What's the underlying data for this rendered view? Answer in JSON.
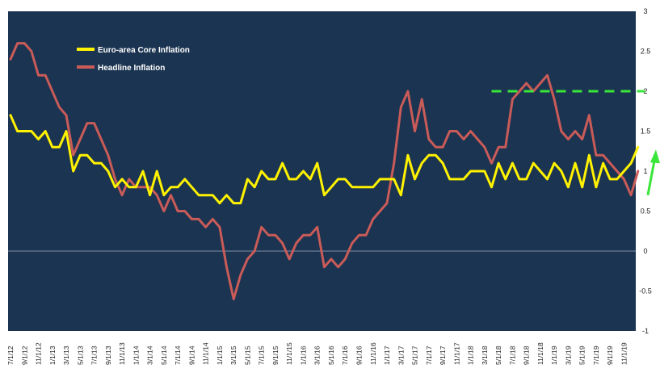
{
  "chart_data": {
    "type": "line",
    "title": "",
    "xlabel": "",
    "ylabel": "",
    "ylim": [
      -1,
      3
    ],
    "yticks": [
      "3",
      "2.5",
      "2",
      "1.5",
      "1",
      "0.5",
      "0",
      "-0.5",
      "-1"
    ],
    "grid": false,
    "legend_position": "top-left",
    "colors": {
      "plot_background": "#1b3451",
      "core": "#fff200",
      "headline": "#c95b58",
      "target_line": "#39e639",
      "arrow": "#39e639",
      "zero_line": "#7f8fa4"
    },
    "x_tick_labels": [
      "7/1/12",
      "9/1/12",
      "11/1/12",
      "1/1/13",
      "3/1/13",
      "5/1/13",
      "7/1/13",
      "9/1/13",
      "11/1/13",
      "1/1/14",
      "3/1/14",
      "5/1/14",
      "7/1/14",
      "9/1/14",
      "11/1/14",
      "1/1/15",
      "3/1/15",
      "5/1/15",
      "7/1/15",
      "9/1/15",
      "11/1/15",
      "1/1/16",
      "3/1/16",
      "5/1/16",
      "7/1/16",
      "9/1/16",
      "11/1/16",
      "1/1/17",
      "3/1/17",
      "5/1/17",
      "7/1/17",
      "9/1/17",
      "11/1/17",
      "1/1/18",
      "3/1/18",
      "5/1/18",
      "7/1/18",
      "9/1/18",
      "11/1/18",
      "1/1/19",
      "3/1/19",
      "5/1/19",
      "7/1/19",
      "9/1/19",
      "11/1/19"
    ],
    "series": [
      {
        "name": "Euro-area Core Inflation",
        "values": [
          1.7,
          1.5,
          1.5,
          1.5,
          1.4,
          1.5,
          1.3,
          1.3,
          1.5,
          1.0,
          1.2,
          1.2,
          1.1,
          1.1,
          1.0,
          0.8,
          0.9,
          0.8,
          0.8,
          1.0,
          0.7,
          1.0,
          0.7,
          0.8,
          0.8,
          0.9,
          0.8,
          0.7,
          0.7,
          0.7,
          0.6,
          0.7,
          0.6,
          0.6,
          0.9,
          0.8,
          1.0,
          0.9,
          0.9,
          1.1,
          0.9,
          0.9,
          1.0,
          0.9,
          1.1,
          0.7,
          0.8,
          0.9,
          0.9,
          0.8,
          0.8,
          0.8,
          0.8,
          0.9,
          0.9,
          0.9,
          0.7,
          1.2,
          0.9,
          1.1,
          1.2,
          1.2,
          1.1,
          0.9,
          0.9,
          0.9,
          1.0,
          1.0,
          1.0,
          0.8,
          1.1,
          0.9,
          1.1,
          0.9,
          0.9,
          1.1,
          1.0,
          0.9,
          1.1,
          1.0,
          0.8,
          1.1,
          0.8,
          1.2,
          0.8,
          1.1,
          0.9,
          0.9,
          1.0,
          1.1,
          1.3
        ]
      },
      {
        "name": "Headline Inflation",
        "values": [
          2.4,
          2.6,
          2.6,
          2.5,
          2.2,
          2.2,
          2.0,
          1.8,
          1.7,
          1.2,
          1.4,
          1.6,
          1.6,
          1.4,
          1.2,
          0.9,
          0.7,
          0.9,
          0.8,
          0.8,
          0.8,
          0.7,
          0.5,
          0.7,
          0.5,
          0.5,
          0.4,
          0.4,
          0.3,
          0.4,
          0.3,
          -0.2,
          -0.6,
          -0.3,
          -0.1,
          0.0,
          0.3,
          0.2,
          0.2,
          0.1,
          -0.1,
          0.1,
          0.2,
          0.2,
          0.3,
          -0.2,
          -0.1,
          -0.2,
          -0.1,
          0.1,
          0.2,
          0.2,
          0.4,
          0.5,
          0.6,
          1.1,
          1.8,
          2.0,
          1.5,
          1.9,
          1.4,
          1.3,
          1.3,
          1.5,
          1.5,
          1.4,
          1.5,
          1.4,
          1.3,
          1.1,
          1.3,
          1.3,
          1.9,
          2.0,
          2.1,
          2.0,
          2.1,
          2.2,
          1.9,
          1.5,
          1.4,
          1.5,
          1.4,
          1.7,
          1.2,
          1.2,
          1.1,
          1.0,
          0.9,
          0.7,
          1.0
        ]
      }
    ],
    "annotations": [
      {
        "type": "horizontal-dashed-line",
        "y": 2.0,
        "x_from_index": 69,
        "x_to_index": 91
      },
      {
        "type": "up-arrow",
        "y_from": 0.7,
        "y_to": 1.25,
        "x_index": 92
      }
    ]
  }
}
